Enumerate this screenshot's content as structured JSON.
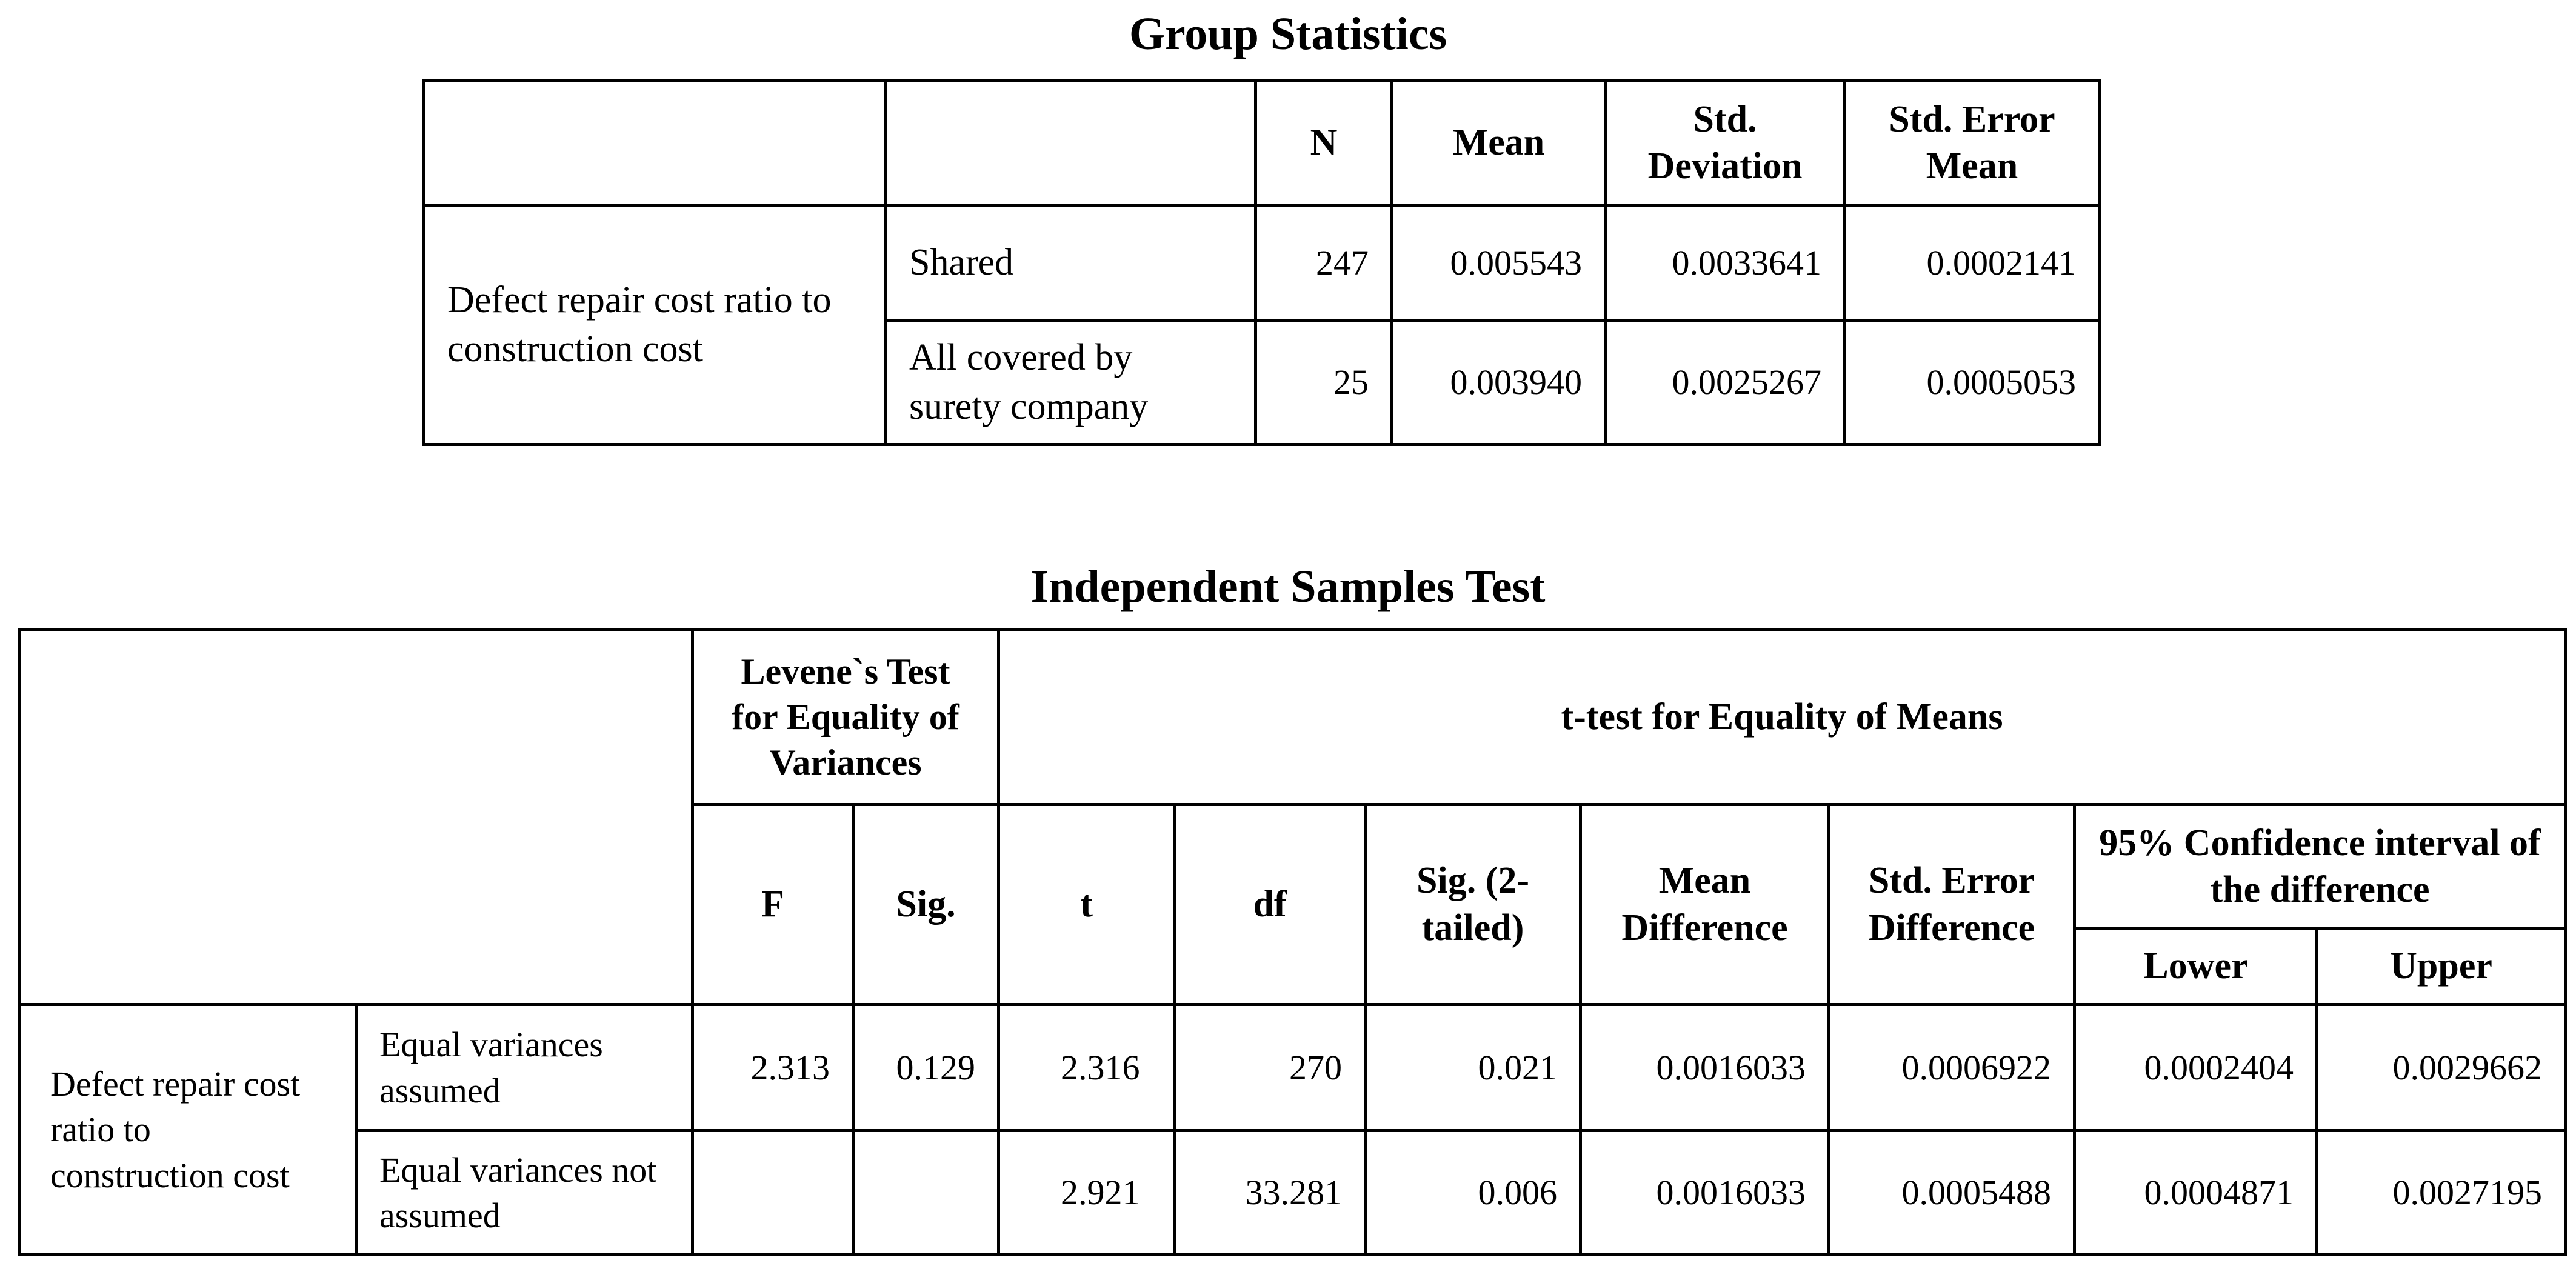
{
  "group_statistics": {
    "title": "Group Statistics",
    "headers": [
      "",
      "",
      "N",
      "Mean",
      "Std. Deviation",
      "Std. Error Mean"
    ],
    "row_label": "Defect repair cost ratio to construction cost",
    "rows": [
      {
        "group": "Shared",
        "n": "247",
        "mean": "0.005543",
        "std_dev": "0.0033641",
        "std_err": "0.0002141"
      },
      {
        "group": "All covered by surety company",
        "n": "25",
        "mean": "0.003940",
        "std_dev": "0.0025267",
        "std_err": "0.0005053"
      }
    ]
  },
  "independent_samples_test": {
    "title": "Independent Samples Test",
    "levene_header": "Levene`s Test for Equality of Variances",
    "ttest_header": "t-test for Equality of Means",
    "ci_header": "95% Confidence interval of the difference",
    "columns": {
      "f": "F",
      "sig": "Sig.",
      "t": "t",
      "df": "df",
      "sig2": "Sig. (2-tailed)",
      "mean_diff": "Mean Difference",
      "std_err_diff": "Std. Error Difference",
      "lower": "Lower",
      "upper": "Upper"
    },
    "row_label": "Defect repair cost ratio to construction cost",
    "rows": [
      {
        "label": "Equal variances assumed",
        "f": "2.313",
        "sig": "0.129",
        "t": "2.316",
        "df": "270",
        "sig2": "0.021",
        "mean_diff": "0.0016033",
        "std_err_diff": "0.0006922",
        "lower": "0.0002404",
        "upper": "0.0029662"
      },
      {
        "label": "Equal variances not assumed",
        "f": "",
        "sig": "",
        "t": "2.921",
        "df": "33.281",
        "sig2": "0.006",
        "mean_diff": "0.0016033",
        "std_err_diff": "0.0005488",
        "lower": "0.0004871",
        "upper": "0.0027195"
      }
    ]
  }
}
